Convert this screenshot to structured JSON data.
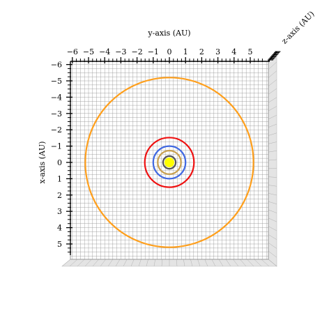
{
  "chart_data": {
    "type": "3d-orbit-plot",
    "view": "top-down",
    "xlabel": "x-axis (AU)",
    "ylabel": "y-axis (AU)",
    "zlabel": "z-axis (AU)",
    "y_axis_ticks": [
      -6,
      -5,
      -4,
      -3,
      -2,
      -1,
      0,
      1,
      2,
      3,
      4,
      5
    ],
    "x_axis_ticks": [
      -6,
      -5,
      -4,
      -3,
      -2,
      -1,
      0,
      1,
      2,
      3,
      4,
      5
    ],
    "y_tick_labels": [
      "−6",
      "−5",
      "−4",
      "−3",
      "−2",
      "−1",
      "0",
      "1",
      "2",
      "3",
      "4",
      "5"
    ],
    "x_tick_labels": [
      "−6",
      "−5",
      "−4",
      "−3",
      "−2",
      "−1",
      "0",
      "1",
      "2",
      "3",
      "4",
      "5"
    ],
    "ylim": [
      -6.1,
      6.1
    ],
    "xlim": [
      -6.1,
      5.7
    ],
    "grid": true,
    "orbits": [
      {
        "radius": 0.39,
        "color": "#555555"
      },
      {
        "radius": 0.72,
        "color": "#c8a050"
      },
      {
        "radius": 1.0,
        "color": "#4169e1"
      },
      {
        "radius": 1.52,
        "color": "#ee1111"
      },
      {
        "radius": 5.2,
        "color": "#ff9f1c"
      }
    ],
    "sun": {
      "x": 0.0,
      "y": 0.0,
      "color": "#ffff00"
    }
  }
}
